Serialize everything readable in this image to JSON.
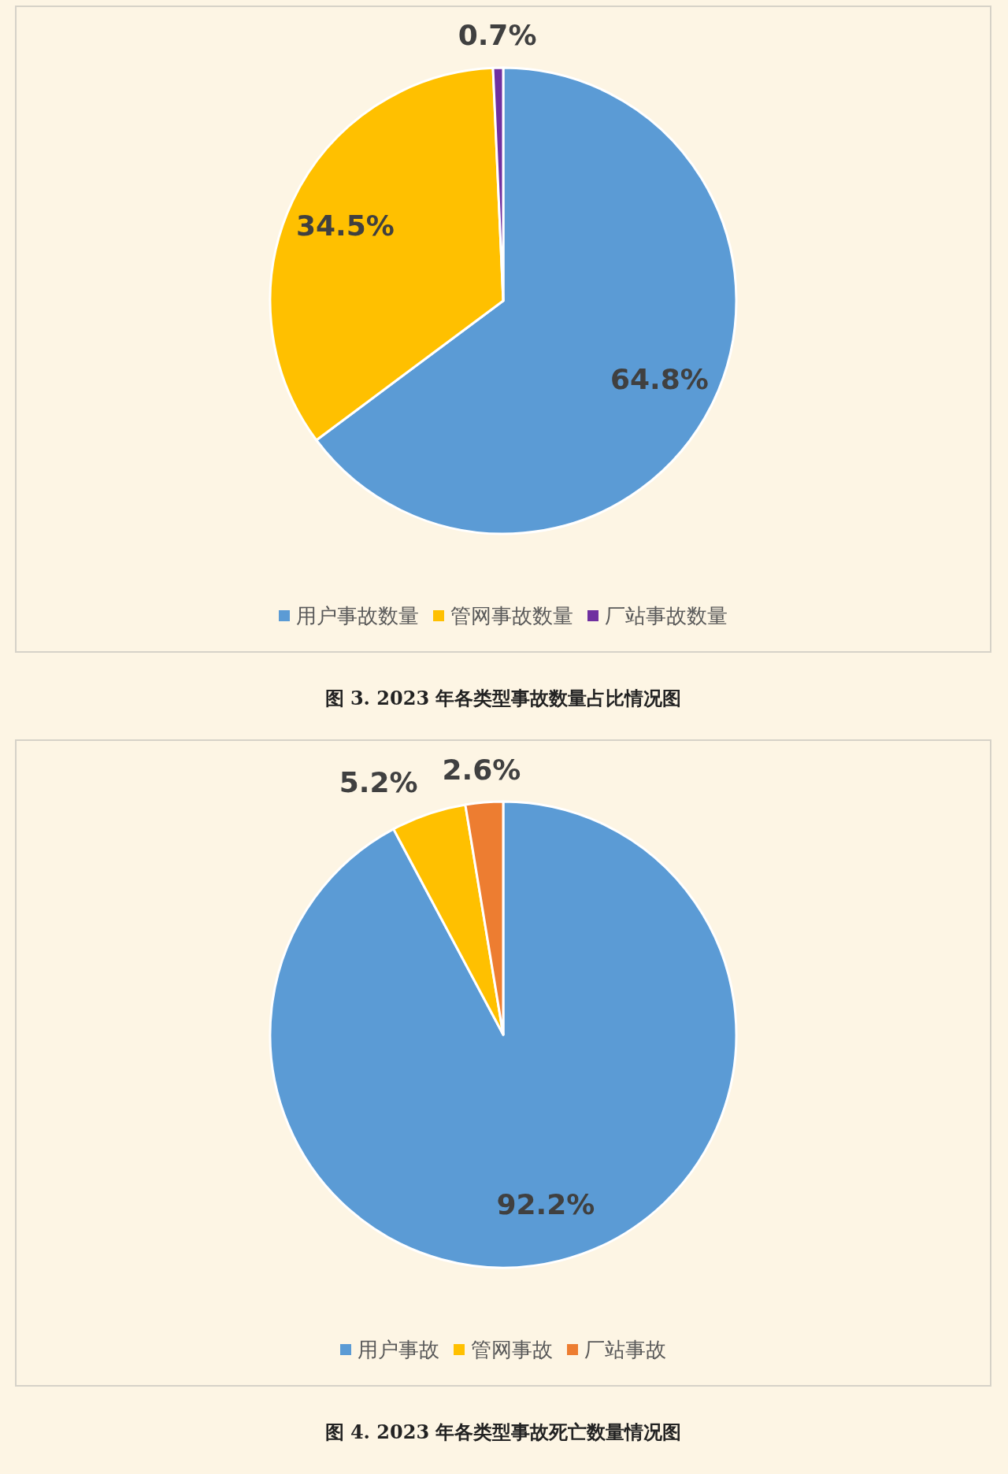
{
  "chart_data": [
    {
      "type": "pie",
      "categories": [
        "用户事故数量",
        "管网事故数量",
        "厂站事故数量"
      ],
      "values": [
        64.8,
        34.5,
        0.7
      ],
      "colors": [
        "#5b9bd5",
        "#ffc000",
        "#7030a0"
      ],
      "value_labels": [
        "64.8%",
        "34.5%",
        "0.7%"
      ],
      "legend": "bottom",
      "annotations": [
        "图 3.  2023 年各类型事故数量占比情况图"
      ]
    },
    {
      "type": "pie",
      "categories": [
        "用户事故",
        "管网事故",
        "厂站事故"
      ],
      "values": [
        92.2,
        5.2,
        2.6
      ],
      "colors": [
        "#5b9bd5",
        "#ffc000",
        "#ed7d31"
      ],
      "value_labels": [
        "92.2%",
        "5.2%",
        "2.6%"
      ],
      "legend": "bottom",
      "annotations": [
        "图 4.  2023 年各类型事故死亡数量情况图"
      ]
    }
  ]
}
